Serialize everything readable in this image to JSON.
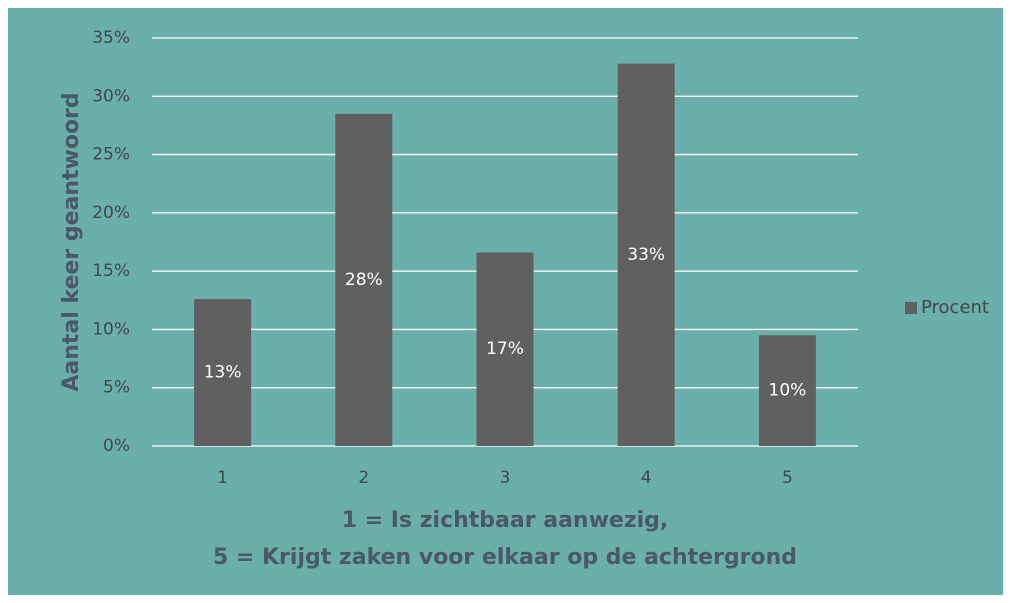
{
  "chart_data": {
    "type": "bar",
    "categories": [
      "1",
      "2",
      "3",
      "4",
      "5"
    ],
    "series": [
      {
        "name": "Procent",
        "color": "#606060",
        "values": [
          12.6,
          28.5,
          16.6,
          32.8,
          9.5
        ],
        "value_labels": [
          "13%",
          "28%",
          "17%",
          "33%",
          "10%"
        ]
      }
    ],
    "ylabel": "Aantal keer geantwoord",
    "xlabel": [
      "1 = Is zichtbaar aanwezig,",
      "5 = Krijgt zaken voor elkaar op de achtergrond"
    ],
    "ylim": [
      0,
      35
    ],
    "yticks": [
      {
        "value": 0,
        "label": "0%"
      },
      {
        "value": 5,
        "label": "5%"
      },
      {
        "value": 10,
        "label": "10%"
      },
      {
        "value": 15,
        "label": "15%"
      },
      {
        "value": 20,
        "label": "20%"
      },
      {
        "value": 25,
        "label": "25%"
      },
      {
        "value": 30,
        "label": "30%"
      },
      {
        "value": 35,
        "label": "35%"
      }
    ],
    "grid": true,
    "legend": "right",
    "background": "#6aafaa"
  }
}
